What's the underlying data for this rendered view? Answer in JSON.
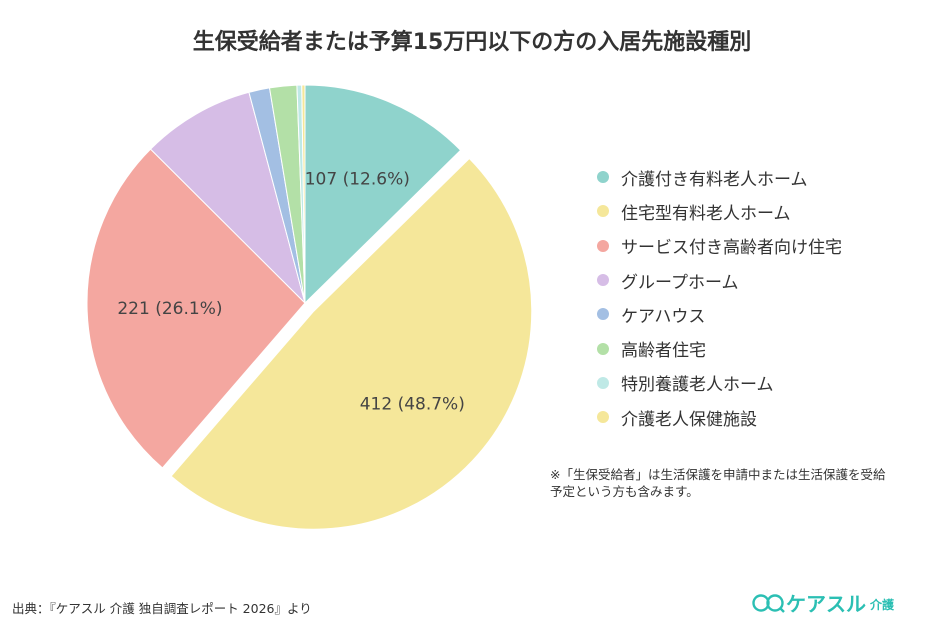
{
  "chart_data": {
    "type": "pie",
    "title": "生保受給者または予算15万円以下の方の入居先施設種別",
    "legend_position": "right",
    "slices": [
      {
        "name": "介護付き有料老人ホーム",
        "value": 107,
        "label": "107 (12.6%)",
        "color": "#8fd3cc",
        "exploded": false
      },
      {
        "name": "住宅型有料老人ホーム",
        "value": 412,
        "label": "412 (48.7%)",
        "color": "#f5e79a",
        "exploded": true
      },
      {
        "name": "サービス付き高齢者向け住宅",
        "value": 221,
        "label": "221 (26.1%)",
        "color": "#f4a7a0",
        "exploded": false
      },
      {
        "name": "グループホーム",
        "value": 71,
        "label": "",
        "color": "#d6bde6",
        "exploded": false
      },
      {
        "name": "ケアハウス",
        "value": 13,
        "label": "",
        "color": "#a3bfe3",
        "exploded": false
      },
      {
        "name": "高齢者住宅",
        "value": 17,
        "label": "",
        "color": "#b3e0a7",
        "exploded": false
      },
      {
        "name": "特別養護老人ホーム",
        "value": 3,
        "label": "",
        "color": "#bfe9e6",
        "exploded": false
      },
      {
        "name": "介護老人保健施設",
        "value": 2,
        "label": "",
        "color": "#f5e79a",
        "exploded": false
      }
    ]
  },
  "note": "※「生保受給者」は生活保護を申請中または生活保護を受給予定という方も含みます。",
  "source": "出典：『ケアスル 介護 独自調査レポート 2026』より",
  "logo": {
    "text": "ケアスル",
    "sub": "介護",
    "color": "#2bbfb3"
  }
}
